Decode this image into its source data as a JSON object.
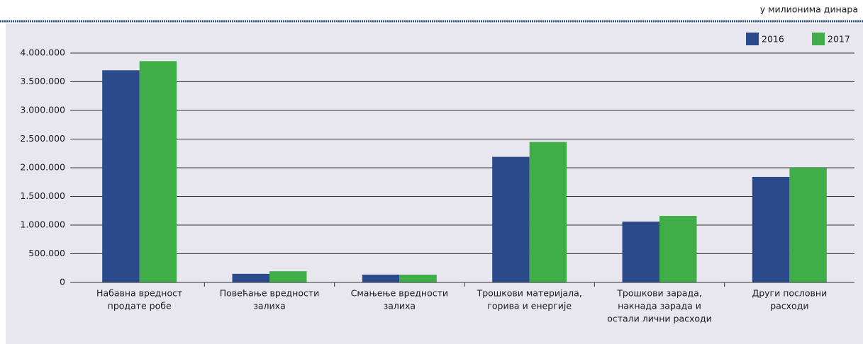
{
  "chart_data": {
    "type": "bar",
    "annotation": "у милионима динара",
    "categories": [
      [
        "Набавна вредност",
        "продате робе"
      ],
      [
        "Повећање вредности",
        "залиха"
      ],
      [
        "Смањење вредности",
        "залиха"
      ],
      [
        "Трошкови материјала,",
        "горива и енергије"
      ],
      [
        "Трошкови зарада,",
        "накнада зарада и",
        "остали лични расходи"
      ],
      [
        "Други пословни",
        "расходи"
      ]
    ],
    "series": [
      {
        "name": "2016",
        "color": "#2b4a8b",
        "values": [
          3700000,
          150000,
          135000,
          2190000,
          1060000,
          1840000
        ]
      },
      {
        "name": "2017",
        "color": "#3fae49",
        "values": [
          3860000,
          195000,
          135000,
          2450000,
          1160000,
          2000000
        ]
      }
    ],
    "ylim": [
      0,
      4000000
    ],
    "yticks": [
      0,
      {
        "value": 500000,
        "label": "500.000"
      },
      {
        "value": 1000000,
        "label": "1.000.000"
      },
      {
        "value": 1500000,
        "label": "1.500.000"
      },
      {
        "value": 2000000,
        "label": "2.000.000"
      },
      {
        "value": 2500000,
        "label": "2.500.000"
      },
      {
        "value": 3000000,
        "label": "3.000.000"
      },
      {
        "value": 3500000,
        "label": "3.500.000"
      },
      {
        "value": 4000000,
        "label": "4.000.000"
      }
    ],
    "grid": true,
    "legend": "top-right"
  }
}
